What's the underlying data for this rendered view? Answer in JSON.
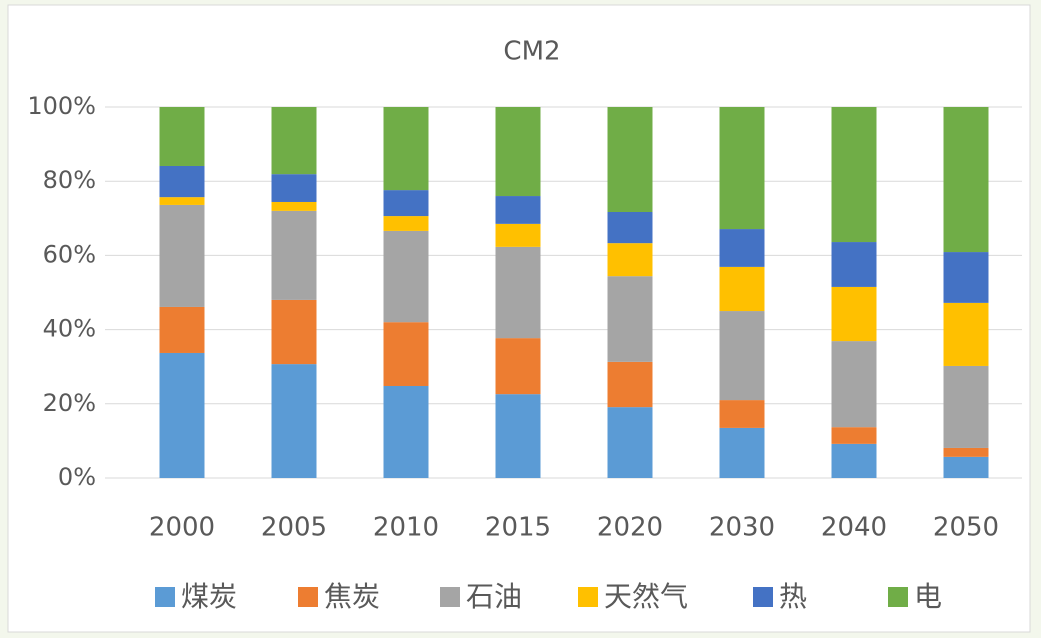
{
  "chart_data": {
    "type": "stacked_bar",
    "title": "CM2",
    "categories": [
      "2000",
      "2005",
      "2010",
      "2015",
      "2020",
      "2030",
      "2040",
      "2050"
    ],
    "series": [
      {
        "name": "煤炭",
        "color": "#5b9bd5",
        "values": [
          33.7,
          30.7,
          24.8,
          22.6,
          19.1,
          13.5,
          9.2,
          5.7
        ]
      },
      {
        "name": "焦炭",
        "color": "#ed7d31",
        "values": [
          12.4,
          17.3,
          17.2,
          15.1,
          12.2,
          7.5,
          4.5,
          2.4
        ]
      },
      {
        "name": "石油",
        "color": "#a5a5a5",
        "values": [
          27.5,
          24.0,
          24.6,
          24.6,
          23.1,
          24.0,
          23.2,
          22.1
        ]
      },
      {
        "name": "天然气",
        "color": "#ffc000",
        "values": [
          2.1,
          2.4,
          4.0,
          6.2,
          8.9,
          11.9,
          14.6,
          17.0
        ]
      },
      {
        "name": "热",
        "color": "#4472c4",
        "values": [
          8.4,
          7.5,
          7.0,
          7.5,
          8.4,
          10.2,
          12.1,
          13.7
        ]
      },
      {
        "name": "电",
        "color": "#70ad47",
        "values": [
          15.9,
          18.1,
          22.4,
          24.0,
          28.3,
          32.9,
          36.4,
          39.1
        ]
      }
    ],
    "ylim": [
      0,
      100
    ],
    "yticks": [
      {
        "value": 0,
        "label": "0%"
      },
      {
        "value": 20,
        "label": "20%"
      },
      {
        "value": 40,
        "label": "40%"
      },
      {
        "value": 60,
        "label": "60%"
      },
      {
        "value": 80,
        "label": "80%"
      },
      {
        "value": 100,
        "label": "100%"
      }
    ],
    "grid": true,
    "legend": "bottom"
  }
}
